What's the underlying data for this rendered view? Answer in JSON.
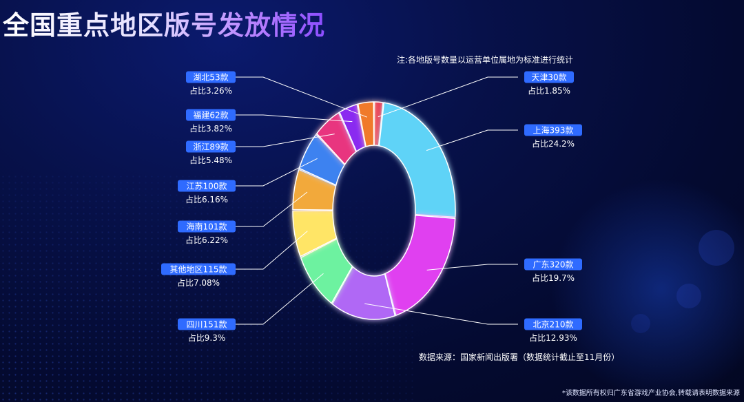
{
  "page": {
    "title": "全国重点地区版号发放情况",
    "note": "注:各地版号数量以运营单位属地为标准进行统计",
    "source": "数据来源：国家新闻出版署（数据统计截止至11月份）",
    "copyright": "*该数据所有权归广东省游戏产业协会,转载请表明数据来源"
  },
  "colors": {
    "background": "#040a30",
    "label_box": "#2f6bff",
    "leader_line": "#ffffff"
  },
  "chart_data": {
    "type": "pie",
    "donut": true,
    "title": "全国重点地区版号发放情况",
    "series": [
      {
        "name": "天津",
        "value": 30,
        "label": "天津30款",
        "pct_label": "占比1.85%",
        "color": "#e8384f"
      },
      {
        "name": "上海",
        "value": 393,
        "label": "上海393款",
        "pct_label": "占比24.2%",
        "color": "#5fd3f7"
      },
      {
        "name": "广东",
        "value": 320,
        "label": "广东320款",
        "pct_label": "占比19.7%",
        "color": "#e040f0"
      },
      {
        "name": "北京",
        "value": 210,
        "label": "北京210款",
        "pct_label": "占比12.93%",
        "color": "#b067f5"
      },
      {
        "name": "四川",
        "value": 151,
        "label": "四川151款",
        "pct_label": "占比9.3%",
        "color": "#6df2a0"
      },
      {
        "name": "其他地区",
        "value": 115,
        "label": "其他地区115款",
        "pct_label": "占比7.08%",
        "color": "#ffe566"
      },
      {
        "name": "海南",
        "value": 101,
        "label": "海南101款",
        "pct_label": "占比6.22%",
        "color": "#f2a93b"
      },
      {
        "name": "江苏",
        "value": 100,
        "label": "江苏100款",
        "pct_label": "占比6.16%",
        "color": "#3c82f0"
      },
      {
        "name": "浙江",
        "value": 89,
        "label": "浙江89款",
        "pct_label": "占比5.48%",
        "color": "#e8357f"
      },
      {
        "name": "福建",
        "value": 62,
        "label": "福建62款",
        "pct_label": "占比3.82%",
        "color": "#8a2bf0"
      },
      {
        "name": "湖北",
        "value": 53,
        "label": "湖北53款",
        "pct_label": "占比3.26%",
        "color": "#f07a2a"
      }
    ]
  }
}
